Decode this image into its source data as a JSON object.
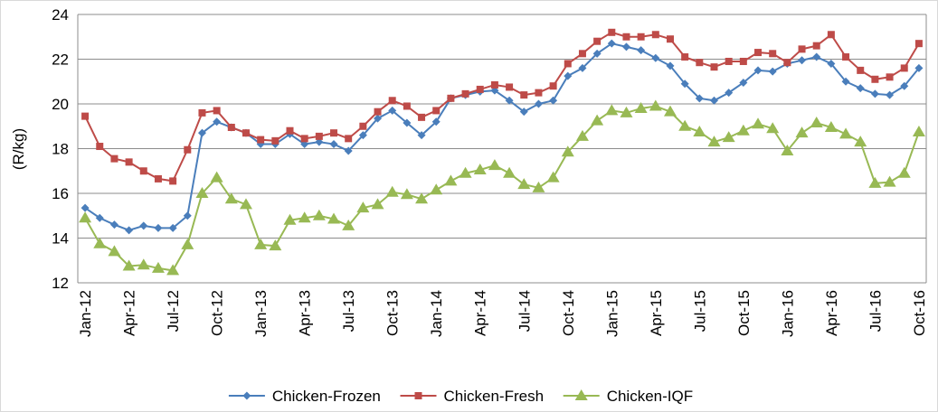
{
  "chart_data": {
    "type": "line",
    "y_label": "(R/kg)",
    "categories": [
      "Jan-12",
      null,
      null,
      "Apr-12",
      null,
      null,
      "Jul-12",
      null,
      null,
      "Oct-12",
      null,
      null,
      "Jan-13",
      null,
      null,
      "Apr-13",
      null,
      null,
      "Jul-13",
      null,
      null,
      "Oct-13",
      null,
      null,
      "Jan-14",
      null,
      null,
      "Apr-14",
      null,
      null,
      "Jul-14",
      null,
      null,
      "Oct-14",
      null,
      null,
      "Jan-15",
      null,
      null,
      "Apr-15",
      null,
      null,
      "Jul-15",
      null,
      null,
      "Oct-15",
      null,
      null,
      "Jan-16",
      null,
      null,
      "Apr-16",
      null,
      null,
      "Jul-16",
      null,
      null,
      "Oct-16"
    ],
    "series": [
      {
        "name": "Chicken-Frozen",
        "color": "#4a7ebb",
        "marker": "diamond",
        "values": [
          15.35,
          14.9,
          14.6,
          14.35,
          14.55,
          14.45,
          14.45,
          15.0,
          18.7,
          19.2,
          18.95,
          18.7,
          18.2,
          18.2,
          18.65,
          18.2,
          18.3,
          18.2,
          17.9,
          18.6,
          19.35,
          19.7,
          19.15,
          18.6,
          19.2,
          20.25,
          20.4,
          20.55,
          20.6,
          20.15,
          19.65,
          20.0,
          20.15,
          21.25,
          21.6,
          22.25,
          22.7,
          22.55,
          22.4,
          22.05,
          21.7,
          20.9,
          20.25,
          20.15,
          20.5,
          20.95,
          21.5,
          21.45,
          21.8,
          21.95,
          22.1,
          21.8,
          21.0,
          20.7,
          20.45,
          20.4,
          20.8,
          21.6
        ]
      },
      {
        "name": "Chicken-Fresh",
        "color": "#be4b48",
        "marker": "square",
        "values": [
          19.45,
          18.1,
          17.55,
          17.4,
          17.0,
          16.65,
          16.55,
          17.95,
          19.6,
          19.7,
          18.95,
          18.7,
          18.4,
          18.35,
          18.8,
          18.45,
          18.55,
          18.7,
          18.45,
          19.0,
          19.65,
          20.15,
          19.9,
          19.4,
          19.7,
          20.25,
          20.45,
          20.65,
          20.85,
          20.75,
          20.4,
          20.5,
          20.8,
          21.8,
          22.25,
          22.8,
          23.2,
          23.0,
          23.0,
          23.1,
          22.9,
          22.1,
          21.85,
          21.65,
          21.9,
          21.9,
          22.3,
          22.25,
          21.85,
          22.45,
          22.6,
          23.1,
          22.1,
          21.5,
          21.1,
          21.2,
          21.6,
          22.7
        ]
      },
      {
        "name": "Chicken-IQF",
        "color": "#98b954",
        "marker": "triangle",
        "values": [
          14.9,
          13.75,
          13.4,
          12.75,
          12.8,
          12.65,
          12.55,
          13.7,
          16.0,
          16.7,
          15.75,
          15.5,
          13.7,
          13.65,
          14.8,
          14.9,
          15.0,
          14.85,
          14.55,
          15.35,
          15.5,
          16.05,
          15.95,
          15.75,
          16.15,
          16.55,
          16.9,
          17.05,
          17.25,
          16.9,
          16.4,
          16.25,
          16.7,
          17.85,
          18.55,
          19.25,
          19.7,
          19.6,
          19.8,
          19.9,
          19.65,
          19.0,
          18.75,
          18.3,
          18.5,
          18.8,
          19.1,
          18.9,
          17.9,
          18.7,
          19.15,
          18.95,
          18.65,
          18.3,
          16.45,
          16.5,
          16.9,
          18.75
        ]
      }
    ],
    "ylim": [
      12,
      24
    ],
    "yticks": [
      12,
      14,
      16,
      18,
      20,
      22,
      24
    ],
    "grid": true,
    "legend": "bottom"
  }
}
